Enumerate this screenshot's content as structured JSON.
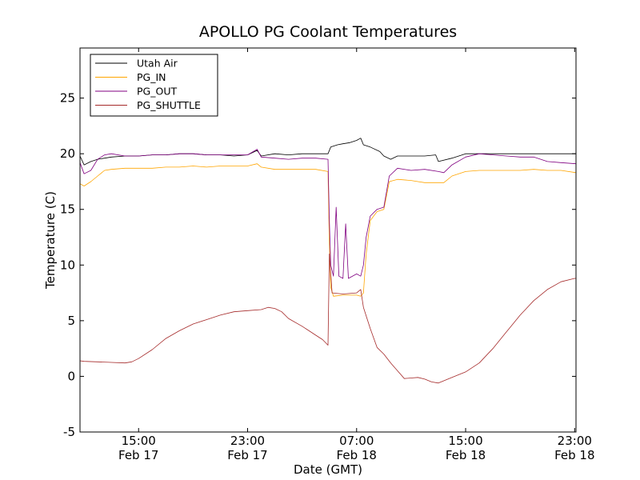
{
  "chart_data": {
    "type": "line",
    "title": "APOLLO PG Coolant Temperatures",
    "xlabel": "Date (GMT)",
    "ylabel": "Temperature (C)",
    "x_unit": "hours since Feb 17 00:00 GMT",
    "xlim": [
      10.7,
      47.1
    ],
    "ylim": [
      -5,
      29.5
    ],
    "yticks": [
      -5,
      0,
      5,
      10,
      15,
      20,
      25
    ],
    "xticks": [
      {
        "x": 15,
        "line1": "15:00",
        "line2": "Feb 17"
      },
      {
        "x": 23,
        "line1": "23:00",
        "line2": "Feb 17"
      },
      {
        "x": 31,
        "line1": "07:00",
        "line2": "Feb 18"
      },
      {
        "x": 39,
        "line1": "15:00",
        "line2": "Feb 18"
      },
      {
        "x": 47,
        "line1": "23:00",
        "line2": "Feb 18"
      }
    ],
    "legend_position": "top-left",
    "series": [
      {
        "name": "Utah Air",
        "color": "#000000",
        "points": [
          [
            10.7,
            19.8
          ],
          [
            11,
            19.0
          ],
          [
            11.5,
            19.3
          ],
          [
            12,
            19.5
          ],
          [
            13,
            19.7
          ],
          [
            14,
            19.8
          ],
          [
            15,
            19.8
          ],
          [
            16,
            19.9
          ],
          [
            17,
            19.9
          ],
          [
            18,
            20.0
          ],
          [
            19,
            20.0
          ],
          [
            20,
            19.9
          ],
          [
            21,
            19.9
          ],
          [
            22,
            19.8
          ],
          [
            23,
            19.9
          ],
          [
            23.7,
            20.3
          ],
          [
            24,
            19.8
          ],
          [
            25,
            20.0
          ],
          [
            26,
            19.9
          ],
          [
            27,
            20.0
          ],
          [
            28,
            20.0
          ],
          [
            28.9,
            20.0
          ],
          [
            29.1,
            20.6
          ],
          [
            29.6,
            20.8
          ],
          [
            30,
            20.9
          ],
          [
            30.5,
            21.0
          ],
          [
            31,
            21.2
          ],
          [
            31.3,
            21.4
          ],
          [
            31.5,
            20.8
          ],
          [
            32,
            20.6
          ],
          [
            32.7,
            20.2
          ],
          [
            33,
            19.8
          ],
          [
            33.5,
            19.5
          ],
          [
            34,
            19.8
          ],
          [
            35,
            19.8
          ],
          [
            36,
            19.8
          ],
          [
            36.8,
            19.9
          ],
          [
            37,
            19.3
          ],
          [
            38,
            19.6
          ],
          [
            39,
            20.0
          ],
          [
            40,
            20.0
          ],
          [
            41,
            20.0
          ],
          [
            42,
            20.0
          ],
          [
            43,
            20.0
          ],
          [
            44,
            20.0
          ],
          [
            45,
            20.0
          ],
          [
            46,
            20.0
          ],
          [
            47.1,
            20.0
          ]
        ]
      },
      {
        "name": "PG_IN",
        "color": "#ffa500",
        "points": [
          [
            10.7,
            17.3
          ],
          [
            11,
            17.1
          ],
          [
            11.5,
            17.5
          ],
          [
            12,
            18.0
          ],
          [
            12.5,
            18.5
          ],
          [
            13,
            18.6
          ],
          [
            14,
            18.7
          ],
          [
            15,
            18.7
          ],
          [
            16,
            18.7
          ],
          [
            17,
            18.8
          ],
          [
            18,
            18.8
          ],
          [
            19,
            18.9
          ],
          [
            20,
            18.8
          ],
          [
            21,
            18.9
          ],
          [
            22,
            18.9
          ],
          [
            23,
            18.9
          ],
          [
            23.7,
            19.1
          ],
          [
            24,
            18.8
          ],
          [
            25,
            18.6
          ],
          [
            26,
            18.6
          ],
          [
            27,
            18.6
          ],
          [
            28,
            18.6
          ],
          [
            28.9,
            18.4
          ],
          [
            29.0,
            12.0
          ],
          [
            29.1,
            8.0
          ],
          [
            29.3,
            7.2
          ],
          [
            30,
            7.3
          ],
          [
            31,
            7.3
          ],
          [
            31.3,
            7.2
          ],
          [
            31.5,
            7.5
          ],
          [
            31.7,
            11.0
          ],
          [
            32,
            14.0
          ],
          [
            32.5,
            14.8
          ],
          [
            33,
            15.0
          ],
          [
            33.4,
            17.5
          ],
          [
            34,
            17.7
          ],
          [
            35,
            17.6
          ],
          [
            35.5,
            17.5
          ],
          [
            36,
            17.4
          ],
          [
            37,
            17.4
          ],
          [
            37.4,
            17.4
          ],
          [
            38,
            18.0
          ],
          [
            39,
            18.4
          ],
          [
            40,
            18.5
          ],
          [
            41,
            18.5
          ],
          [
            42,
            18.5
          ],
          [
            43,
            18.5
          ],
          [
            44,
            18.6
          ],
          [
            45,
            18.5
          ],
          [
            46,
            18.5
          ],
          [
            47.1,
            18.3
          ]
        ]
      },
      {
        "name": "PG_OUT",
        "color": "#800080",
        "points": [
          [
            10.7,
            19.2
          ],
          [
            11,
            18.2
          ],
          [
            11.5,
            18.5
          ],
          [
            12,
            19.5
          ],
          [
            12.5,
            19.9
          ],
          [
            13,
            20.0
          ],
          [
            14,
            19.8
          ],
          [
            15,
            19.8
          ],
          [
            16,
            19.9
          ],
          [
            17,
            19.9
          ],
          [
            18,
            20.0
          ],
          [
            19,
            20.0
          ],
          [
            20,
            19.9
          ],
          [
            21,
            19.9
          ],
          [
            22,
            19.9
          ],
          [
            23,
            19.9
          ],
          [
            23.7,
            20.4
          ],
          [
            24,
            19.7
          ],
          [
            25,
            19.6
          ],
          [
            26,
            19.5
          ],
          [
            27,
            19.6
          ],
          [
            28,
            19.6
          ],
          [
            28.9,
            19.5
          ],
          [
            29.0,
            14.0
          ],
          [
            29.1,
            10.0
          ],
          [
            29.3,
            9.0
          ],
          [
            29.5,
            15.2
          ],
          [
            29.7,
            9.0
          ],
          [
            30,
            8.8
          ],
          [
            30.2,
            13.7
          ],
          [
            30.4,
            8.8
          ],
          [
            31,
            9.2
          ],
          [
            31.3,
            9.0
          ],
          [
            31.5,
            10.0
          ],
          [
            31.7,
            12.5
          ],
          [
            32,
            14.4
          ],
          [
            32.5,
            15.0
          ],
          [
            33,
            15.2
          ],
          [
            33.4,
            18.0
          ],
          [
            34,
            18.7
          ],
          [
            35,
            18.5
          ],
          [
            36,
            18.6
          ],
          [
            37,
            18.4
          ],
          [
            37.4,
            18.3
          ],
          [
            38,
            19.0
          ],
          [
            39,
            19.7
          ],
          [
            40,
            20.0
          ],
          [
            41,
            19.9
          ],
          [
            42,
            19.8
          ],
          [
            43,
            19.7
          ],
          [
            44,
            19.7
          ],
          [
            45,
            19.3
          ],
          [
            46,
            19.2
          ],
          [
            47.1,
            19.1
          ]
        ]
      },
      {
        "name": "PG_SHUTTLE",
        "color": "#a52a2a",
        "points": [
          [
            10.7,
            1.4
          ],
          [
            11,
            1.35
          ],
          [
            12,
            1.3
          ],
          [
            13,
            1.25
          ],
          [
            14,
            1.2
          ],
          [
            14.5,
            1.3
          ],
          [
            15,
            1.6
          ],
          [
            16,
            2.4
          ],
          [
            17,
            3.4
          ],
          [
            18,
            4.1
          ],
          [
            19,
            4.7
          ],
          [
            20,
            5.1
          ],
          [
            21,
            5.5
          ],
          [
            22,
            5.8
          ],
          [
            23,
            5.9
          ],
          [
            24,
            6.0
          ],
          [
            24.5,
            6.2
          ],
          [
            25,
            6.1
          ],
          [
            25.5,
            5.8
          ],
          [
            26,
            5.2
          ],
          [
            27,
            4.5
          ],
          [
            28,
            3.7
          ],
          [
            28.5,
            3.3
          ],
          [
            28.9,
            2.8
          ],
          [
            29.0,
            11.0
          ],
          [
            29.2,
            7.5
          ],
          [
            30,
            7.4
          ],
          [
            31,
            7.5
          ],
          [
            31.3,
            7.8
          ],
          [
            31.5,
            6.2
          ],
          [
            32,
            4.3
          ],
          [
            32.5,
            2.6
          ],
          [
            33,
            2.0
          ],
          [
            33.5,
            1.2
          ],
          [
            34,
            0.5
          ],
          [
            34.5,
            -0.2
          ],
          [
            35,
            -0.15
          ],
          [
            35.5,
            -0.1
          ],
          [
            36,
            -0.25
          ],
          [
            36.5,
            -0.5
          ],
          [
            37,
            -0.6
          ],
          [
            37.5,
            -0.35
          ],
          [
            38,
            -0.1
          ],
          [
            39,
            0.4
          ],
          [
            40,
            1.2
          ],
          [
            41,
            2.5
          ],
          [
            42,
            4.0
          ],
          [
            43,
            5.5
          ],
          [
            44,
            6.8
          ],
          [
            45,
            7.8
          ],
          [
            46,
            8.5
          ],
          [
            47,
            8.8
          ],
          [
            47.1,
            8.8
          ]
        ]
      }
    ]
  }
}
